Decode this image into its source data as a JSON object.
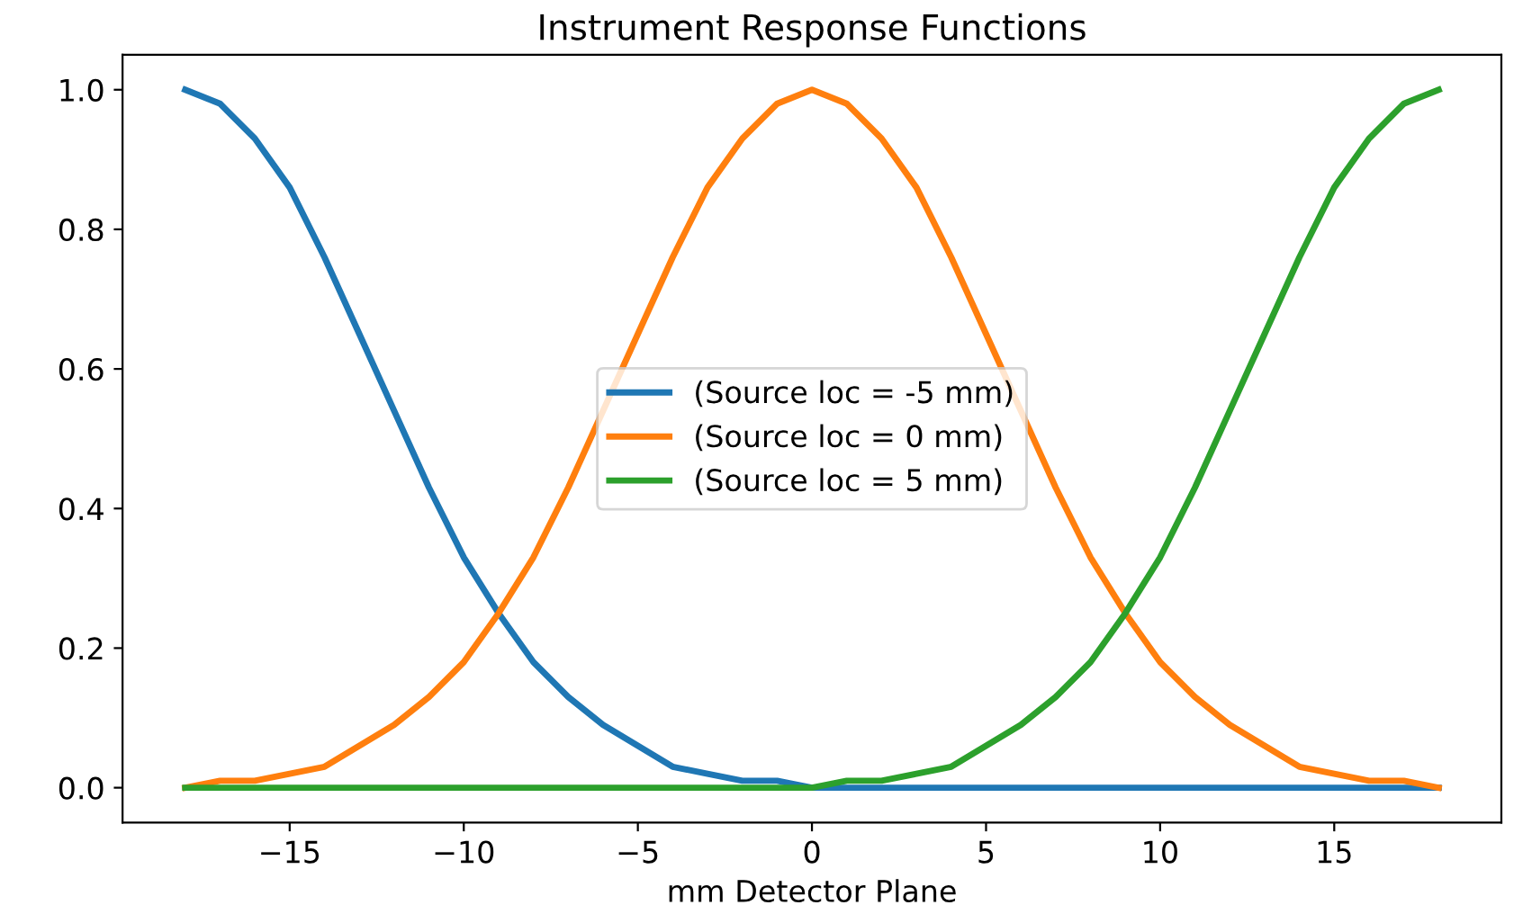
{
  "chart_data": {
    "type": "line",
    "title": "Instrument Response Functions",
    "xlabel": "mm Detector Plane",
    "x": [
      -18,
      -17,
      -16,
      -15,
      -14,
      -13,
      -12,
      -11,
      -10,
      -9,
      -8,
      -7,
      -6,
      -5,
      -4,
      -3,
      -2,
      -1,
      0,
      1,
      2,
      3,
      4,
      5,
      6,
      7,
      8,
      9,
      10,
      11,
      12,
      13,
      14,
      15,
      16,
      17,
      18
    ],
    "series": [
      {
        "name": "(Source loc = -5 mm)",
        "color": "#1f77b4",
        "values": [
          1.0,
          0.98,
          0.93,
          0.86,
          0.76,
          0.65,
          0.54,
          0.43,
          0.33,
          0.25,
          0.18,
          0.13,
          0.09,
          0.06,
          0.03,
          0.02,
          0.01,
          0.01,
          0.0,
          0.0,
          0.0,
          0.0,
          0.0,
          0.0,
          0.0,
          0.0,
          0.0,
          0.0,
          0.0,
          0.0,
          0.0,
          0.0,
          0.0,
          0.0,
          0.0,
          0.0,
          0.0
        ]
      },
      {
        "name": "(Source loc = 0 mm)",
        "color": "#ff7f0e",
        "x": [
          -18,
          -17,
          -16,
          -15,
          -14,
          -13,
          -12,
          -11,
          -10,
          -9,
          -8,
          -7,
          -5,
          -4,
          -3,
          -2,
          -1,
          0,
          1,
          2,
          3,
          4,
          5,
          7,
          8,
          9,
          10,
          11,
          12,
          13,
          14,
          15,
          16,
          17,
          18
        ],
        "values": [
          0.0,
          0.01,
          0.01,
          0.02,
          0.03,
          0.06,
          0.09,
          0.13,
          0.18,
          0.25,
          0.33,
          0.43,
          0.65,
          0.76,
          0.86,
          0.93,
          0.98,
          1.0,
          0.98,
          0.93,
          0.86,
          0.76,
          0.65,
          0.43,
          0.33,
          0.25,
          0.18,
          0.13,
          0.09,
          0.06,
          0.03,
          0.02,
          0.01,
          0.01,
          0.0
        ]
      },
      {
        "name": "(Source loc = 5 mm)",
        "color": "#2ca02c",
        "values": [
          0.0,
          0.0,
          0.0,
          0.0,
          0.0,
          0.0,
          0.0,
          0.0,
          0.0,
          0.0,
          0.0,
          0.0,
          0.0,
          0.0,
          0.0,
          0.0,
          0.0,
          0.0,
          0.0,
          0.01,
          0.01,
          0.02,
          0.03,
          0.06,
          0.09,
          0.13,
          0.18,
          0.25,
          0.33,
          0.43,
          0.54,
          0.65,
          0.76,
          0.86,
          0.93,
          0.98,
          1.0
        ]
      }
    ],
    "xlim": [
      -19.8,
      19.8
    ],
    "ylim": [
      -0.05,
      1.05
    ],
    "xticks": [
      {
        "value": -15,
        "label": "−15"
      },
      {
        "value": -10,
        "label": "−10"
      },
      {
        "value": -5,
        "label": "−5"
      },
      {
        "value": 0,
        "label": "0"
      },
      {
        "value": 5,
        "label": "5"
      },
      {
        "value": 10,
        "label": "10"
      },
      {
        "value": 15,
        "label": "15"
      }
    ],
    "yticks": [
      {
        "value": 0,
        "label": "0.0"
      },
      {
        "value": 0.2,
        "label": "0.2"
      },
      {
        "value": 0.4,
        "label": "0.4"
      },
      {
        "value": 0.6,
        "label": "0.6"
      },
      {
        "value": 0.8,
        "label": "0.8"
      },
      {
        "value": 1.0,
        "label": "1.0"
      }
    ],
    "grid": false,
    "legend": "center",
    "marker": "none",
    "line_style": "solid"
  }
}
